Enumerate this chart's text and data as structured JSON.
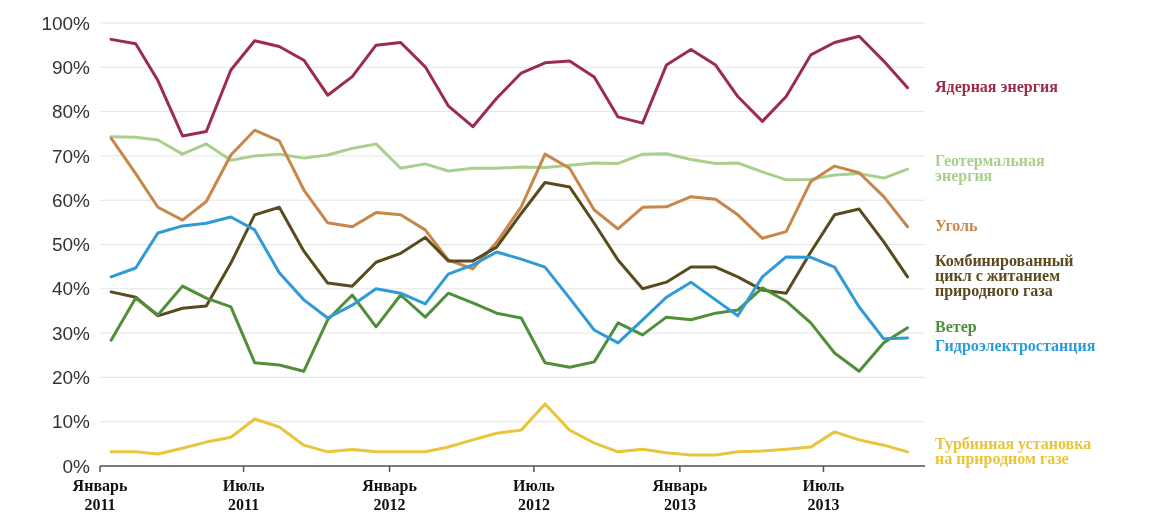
{
  "chart_data": {
    "type": "line",
    "x": [
      "2011-01-15",
      "2011-02-15",
      "2011-03-15",
      "2011-04-15",
      "2011-05-15",
      "2011-06-15",
      "2011-07-15",
      "2011-08-15",
      "2011-09-15",
      "2011-10-15",
      "2011-11-15",
      "2011-12-15",
      "2012-01-15",
      "2012-02-15",
      "2012-03-15",
      "2012-04-15",
      "2012-05-15",
      "2012-06-15",
      "2012-07-15",
      "2012-08-15",
      "2012-09-15",
      "2012-10-15",
      "2012-11-15",
      "2012-12-15",
      "2013-01-15",
      "2013-02-15",
      "2013-03-15",
      "2013-04-15",
      "2013-05-15",
      "2013-06-15",
      "2013-07-15",
      "2013-08-15",
      "2013-09-15",
      "2013-10-15"
    ],
    "series": [
      {
        "name": "Ядерная энергия",
        "color": "#9b2d4a",
        "values": [
          96.3,
          95.3,
          87,
          74.5,
          75.5,
          89.4,
          96,
          94.7,
          91.6,
          83.7,
          87.9,
          95,
          95.6,
          90.1,
          81.3,
          76.6,
          83,
          88.7,
          91,
          91.4,
          87.8,
          78.8,
          77.4,
          90.5,
          94,
          90.5,
          83.4,
          77.8,
          83.4,
          92.8,
          95.6,
          97,
          91.4,
          85.4
        ]
      },
      {
        "name": "Геотермальная\nэнергия",
        "color": "#a8d08d",
        "values": [
          74.3,
          74.2,
          73.6,
          70.4,
          72.7,
          69,
          70,
          70.4,
          69.5,
          70.2,
          71.7,
          72.7,
          67.2,
          68.2,
          66.6,
          67.2,
          67.2,
          67.5,
          67.4,
          67.9,
          68.4,
          68.3,
          70.4,
          70.5,
          69.2,
          68.3,
          68.4,
          66.4,
          64.6,
          64.7,
          65.7,
          66,
          65,
          67
        ]
      },
      {
        "name": "Уголь",
        "color": "#c8864a",
        "values": [
          74,
          66,
          58.4,
          55.5,
          59.7,
          70.2,
          75.8,
          73.4,
          62.3,
          54.9,
          54,
          57.2,
          56.7,
          53.3,
          46.5,
          44.5,
          50.5,
          58.5,
          70.4,
          67.2,
          57.8,
          53.5,
          58.4,
          58.5,
          60.8,
          60.2,
          56.7,
          51.4,
          52.9,
          64.2,
          67.7,
          66.2,
          60.8,
          54
        ]
      },
      {
        "name": "Комбинированный\nцикл с житанием\nприродного газа",
        "color": "#5a4a1e",
        "values": [
          39.3,
          38.1,
          33.9,
          35.6,
          36.1,
          45.8,
          56.7,
          58.4,
          48.5,
          41.3,
          40.6,
          46,
          48,
          51.6,
          46.3,
          46.3,
          49.4,
          57,
          64,
          63,
          54.8,
          46.5,
          40,
          41.5,
          44.9,
          44.9,
          42.7,
          39.7,
          39,
          48.3,
          56.7,
          58,
          50.6,
          42.7
        ]
      },
      {
        "name": "Ветер",
        "color": "#4f8f3a",
        "values": [
          28.4,
          37.9,
          34.1,
          40.6,
          37.9,
          35.9,
          23.3,
          22.8,
          21.4,
          33,
          38.6,
          31.4,
          38.6,
          33.6,
          39,
          36.8,
          34.5,
          33.4,
          23.3,
          22.3,
          23.5,
          32.3,
          29.6,
          33.6,
          33,
          34.5,
          35.2,
          40.2,
          37.2,
          32.3,
          25.5,
          21.4,
          27.8,
          31.2
        ]
      },
      {
        "name": "Гидроэлектростанция",
        "color": "#2e9bd6",
        "values": [
          42.7,
          44.7,
          52.6,
          54.2,
          54.8,
          56.2,
          53.3,
          43.6,
          37.5,
          33.4,
          36.3,
          40,
          39,
          36.6,
          43.3,
          45.4,
          48.3,
          46.7,
          44.9,
          37.9,
          30.7,
          27.8,
          33,
          38.1,
          41.5,
          37.5,
          33.9,
          42.7,
          47.2,
          47.1,
          44.9,
          35.9,
          28.7,
          28.9
        ]
      },
      {
        "name": "Турбинная установка\nна природном газе",
        "color": "#e8c53a",
        "values": [
          3.2,
          3.2,
          2.7,
          4,
          5.4,
          6.5,
          10.6,
          8.8,
          4.7,
          3.2,
          3.7,
          3.2,
          3.2,
          3.2,
          4.3,
          5.9,
          7.4,
          8.1,
          14,
          8.1,
          5.2,
          3.2,
          3.8,
          3,
          2.5,
          2.5,
          3.2,
          3.4,
          3.8,
          4.3,
          7.7,
          5.9,
          4.7,
          3.2
        ]
      }
    ],
    "xlim": [
      "2011-01-01",
      "2013-11-06"
    ],
    "xticks": [
      {
        "value": "2011-01-01",
        "label": "Январь\n2011"
      },
      {
        "value": "2011-07-01",
        "label": "Июль\n2011"
      },
      {
        "value": "2012-01-01",
        "label": "Январь\n2012"
      },
      {
        "value": "2012-07-01",
        "label": "Июль\n2012"
      },
      {
        "value": "2013-01-01",
        "label": "Январь\n2013"
      },
      {
        "value": "2013-07-01",
        "label": "Июль\n2013"
      }
    ],
    "ylim": [
      0,
      100
    ],
    "yticks": [
      {
        "value": 0,
        "label": "0%"
      },
      {
        "value": 10,
        "label": "10%"
      },
      {
        "value": 20,
        "label": "20%"
      },
      {
        "value": 30,
        "label": "30%"
      },
      {
        "value": 40,
        "label": "40%"
      },
      {
        "value": 50,
        "label": "50%"
      },
      {
        "value": 60,
        "label": "60%"
      },
      {
        "value": 70,
        "label": "70%"
      },
      {
        "value": 80,
        "label": "80%"
      },
      {
        "value": 90,
        "label": "90%"
      },
      {
        "value": 100,
        "label": "100%"
      }
    ],
    "grid": "y",
    "legend": "right",
    "line_style": "solid"
  }
}
